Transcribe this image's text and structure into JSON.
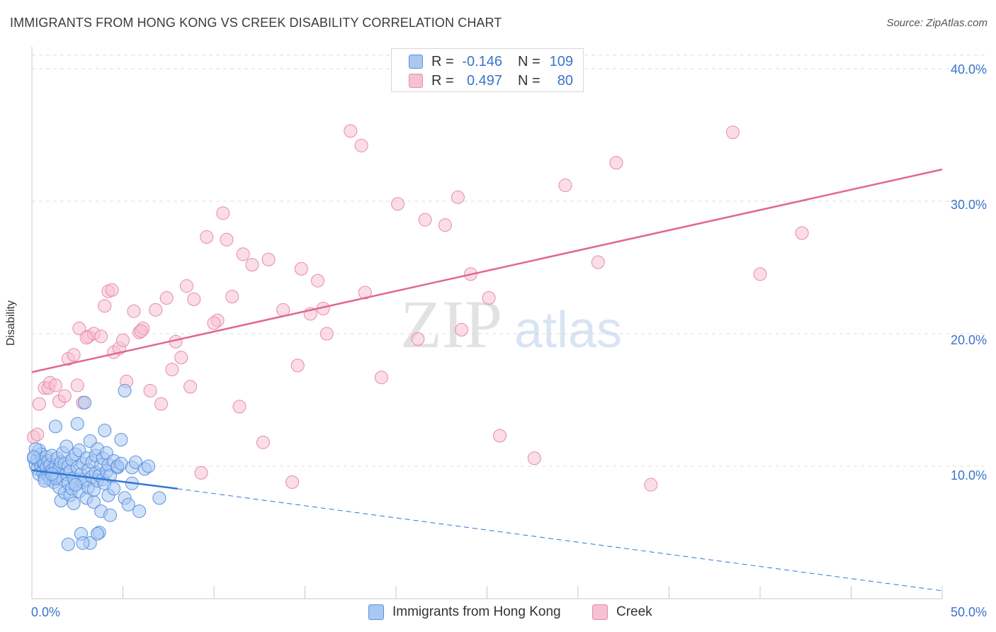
{
  "title": "IMMIGRANTS FROM HONG KONG VS CREEK DISABILITY CORRELATION CHART",
  "source": "Source: ZipAtlas.com",
  "legend": {
    "rows": [
      {
        "r_label": "R = ",
        "r_value": "-0.146",
        "n_label": "N = ",
        "n_value": "109"
      },
      {
        "r_label": "R = ",
        "r_value": "0.497",
        "n_label": "N = ",
        "n_value": "80"
      }
    ]
  },
  "bottom_legend": {
    "series1": "Immigrants from Hong Kong",
    "series2": "Creek"
  },
  "colors": {
    "blue_fill": "#a9c8f2",
    "blue_stroke": "#5b92dd",
    "blue_line": "#2f78d6",
    "pink_fill": "#f6c1d1",
    "pink_stroke": "#e98aa8",
    "pink_line": "#e06793",
    "tick_text": "#3a74c8",
    "grid": "#dcdcdc"
  },
  "watermark": {
    "zip": "ZIP",
    "atlas": "atlas"
  },
  "chart_data": {
    "type": "scatter",
    "title": "IMMIGRANTS FROM HONG KONG VS CREEK DISABILITY CORRELATION CHART",
    "xlabel": "",
    "ylabel": "Disability",
    "xlim": [
      0,
      50
    ],
    "ylim": [
      0,
      40
    ],
    "x_tick_labels": [
      "0.0%",
      "50.0%"
    ],
    "y_ticks": [
      10,
      20,
      30,
      40
    ],
    "y_tick_labels": [
      "10.0%",
      "20.0%",
      "30.0%",
      "40.0%"
    ],
    "grid": true,
    "series": [
      {
        "name": "Immigrants from Hong Kong",
        "r": -0.146,
        "n": 109,
        "trend": {
          "x": [
            0,
            8
          ],
          "y": [
            9.7,
            8.3
          ],
          "dashed_to": [
            50,
            0.6
          ]
        },
        "points": [
          [
            0.1,
            10.6
          ],
          [
            0.2,
            10.1
          ],
          [
            0.3,
            9.8
          ],
          [
            0.3,
            10.5
          ],
          [
            0.4,
            11.2
          ],
          [
            0.4,
            9.4
          ],
          [
            0.5,
            10.0
          ],
          [
            0.5,
            10.9
          ],
          [
            0.6,
            9.6
          ],
          [
            0.6,
            10.3
          ],
          [
            0.7,
            9.1
          ],
          [
            0.7,
            10.2
          ],
          [
            0.8,
            9.9
          ],
          [
            0.8,
            10.7
          ],
          [
            0.9,
            9.3
          ],
          [
            0.9,
            10.4
          ],
          [
            1.0,
            9.0
          ],
          [
            1.0,
            10.1
          ],
          [
            1.1,
            9.7
          ],
          [
            1.1,
            10.8
          ],
          [
            1.2,
            8.8
          ],
          [
            1.2,
            9.5
          ],
          [
            1.3,
            10.0
          ],
          [
            1.3,
            13.0
          ],
          [
            1.4,
            9.2
          ],
          [
            1.4,
            10.6
          ],
          [
            1.5,
            8.4
          ],
          [
            1.5,
            9.8
          ],
          [
            1.6,
            10.3
          ],
          [
            1.6,
            7.4
          ],
          [
            1.7,
            9.0
          ],
          [
            1.7,
            11.0
          ],
          [
            1.8,
            8.0
          ],
          [
            1.8,
            10.2
          ],
          [
            1.9,
            9.4
          ],
          [
            1.9,
            11.5
          ],
          [
            2.0,
            8.7
          ],
          [
            2.0,
            10.0
          ],
          [
            2.1,
            7.8
          ],
          [
            2.1,
            9.6
          ],
          [
            2.2,
            8.3
          ],
          [
            2.2,
            10.5
          ],
          [
            2.3,
            9.1
          ],
          [
            2.3,
            7.2
          ],
          [
            2.4,
            8.6
          ],
          [
            2.4,
            10.9
          ],
          [
            2.5,
            9.9
          ],
          [
            2.5,
            13.2
          ],
          [
            2.6,
            8.1
          ],
          [
            2.6,
            11.2
          ],
          [
            2.7,
            9.4
          ],
          [
            2.7,
            4.9
          ],
          [
            2.8,
            8.8
          ],
          [
            2.8,
            10.2
          ],
          [
            2.9,
            9.0
          ],
          [
            2.9,
            14.8
          ],
          [
            3.0,
            7.6
          ],
          [
            3.0,
            10.6
          ],
          [
            3.1,
            8.4
          ],
          [
            3.1,
            9.7
          ],
          [
            3.2,
            11.9
          ],
          [
            3.2,
            4.2
          ],
          [
            3.3,
            9.2
          ],
          [
            3.3,
            10.3
          ],
          [
            3.4,
            7.3
          ],
          [
            3.4,
            8.2
          ],
          [
            3.5,
            9.5
          ],
          [
            3.5,
            10.8
          ],
          [
            3.6,
            8.9
          ],
          [
            3.6,
            11.3
          ],
          [
            3.7,
            9.3
          ],
          [
            3.7,
            5.0
          ],
          [
            3.8,
            10.1
          ],
          [
            3.8,
            6.6
          ],
          [
            3.9,
            9.0
          ],
          [
            3.9,
            10.6
          ],
          [
            4.0,
            8.7
          ],
          [
            4.0,
            12.7
          ],
          [
            4.1,
            9.6
          ],
          [
            4.1,
            11.0
          ],
          [
            4.2,
            10.1
          ],
          [
            4.2,
            7.8
          ],
          [
            4.3,
            9.3
          ],
          [
            4.3,
            6.3
          ],
          [
            4.5,
            10.4
          ],
          [
            4.5,
            8.3
          ],
          [
            4.7,
            9.9
          ],
          [
            4.7,
            10.0
          ],
          [
            4.9,
            12.0
          ],
          [
            4.9,
            10.2
          ],
          [
            5.1,
            7.6
          ],
          [
            5.1,
            15.7
          ],
          [
            5.3,
            7.1
          ],
          [
            5.5,
            9.9
          ],
          [
            5.5,
            8.7
          ],
          [
            5.7,
            10.3
          ],
          [
            5.9,
            6.6
          ],
          [
            6.2,
            9.8
          ],
          [
            6.4,
            10.0
          ],
          [
            7.0,
            7.6
          ],
          [
            2.0,
            4.1
          ],
          [
            2.8,
            4.2
          ],
          [
            3.6,
            4.9
          ],
          [
            1.3,
            9.1
          ],
          [
            0.7,
            8.9
          ],
          [
            1.1,
            9.4
          ],
          [
            2.4,
            8.6
          ],
          [
            0.2,
            11.3
          ],
          [
            0.1,
            10.7
          ]
        ]
      },
      {
        "name": "Creek",
        "r": 0.497,
        "n": 80,
        "trend": {
          "x": [
            0,
            50
          ],
          "y": [
            17.1,
            32.4
          ]
        },
        "points": [
          [
            0.1,
            12.2
          ],
          [
            0.4,
            14.7
          ],
          [
            0.7,
            15.9
          ],
          [
            0.9,
            15.9
          ],
          [
            1.0,
            16.3
          ],
          [
            1.3,
            16.1
          ],
          [
            1.5,
            14.9
          ],
          [
            1.8,
            15.3
          ],
          [
            2.0,
            18.1
          ],
          [
            2.3,
            18.4
          ],
          [
            2.6,
            20.4
          ],
          [
            2.8,
            14.8
          ],
          [
            3.1,
            19.8
          ],
          [
            3.4,
            20.0
          ],
          [
            3.8,
            19.8
          ],
          [
            4.0,
            22.1
          ],
          [
            4.2,
            23.2
          ],
          [
            4.5,
            18.6
          ],
          [
            4.8,
            18.9
          ],
          [
            5.0,
            19.5
          ],
          [
            5.2,
            16.4
          ],
          [
            5.6,
            21.7
          ],
          [
            5.9,
            20.1
          ],
          [
            6.1,
            20.4
          ],
          [
            6.5,
            15.7
          ],
          [
            6.8,
            21.8
          ],
          [
            7.1,
            14.7
          ],
          [
            7.4,
            22.7
          ],
          [
            7.7,
            17.3
          ],
          [
            7.9,
            19.4
          ],
          [
            8.2,
            18.2
          ],
          [
            8.5,
            23.6
          ],
          [
            8.9,
            22.6
          ],
          [
            9.3,
            9.5
          ],
          [
            9.6,
            27.3
          ],
          [
            10.2,
            21.0
          ],
          [
            10.5,
            29.1
          ],
          [
            10.7,
            27.1
          ],
          [
            11.0,
            22.8
          ],
          [
            11.4,
            14.5
          ],
          [
            11.6,
            26.0
          ],
          [
            12.1,
            25.2
          ],
          [
            12.7,
            11.8
          ],
          [
            13.0,
            25.6
          ],
          [
            13.8,
            21.8
          ],
          [
            14.3,
            8.8
          ],
          [
            14.6,
            17.6
          ],
          [
            14.8,
            24.9
          ],
          [
            15.3,
            21.5
          ],
          [
            15.7,
            24.0
          ],
          [
            16.0,
            21.9
          ],
          [
            16.2,
            20.0
          ],
          [
            17.5,
            35.3
          ],
          [
            18.1,
            34.2
          ],
          [
            18.3,
            23.1
          ],
          [
            19.2,
            16.7
          ],
          [
            20.1,
            29.8
          ],
          [
            21.2,
            19.6
          ],
          [
            21.6,
            28.6
          ],
          [
            22.7,
            28.2
          ],
          [
            23.4,
            30.3
          ],
          [
            23.6,
            20.3
          ],
          [
            24.1,
            24.5
          ],
          [
            25.1,
            22.7
          ],
          [
            25.7,
            12.3
          ],
          [
            27.6,
            10.6
          ],
          [
            29.3,
            31.2
          ],
          [
            31.1,
            25.4
          ],
          [
            32.1,
            32.9
          ],
          [
            34.0,
            8.6
          ],
          [
            38.5,
            35.2
          ],
          [
            40.0,
            24.5
          ],
          [
            42.3,
            27.6
          ],
          [
            4.4,
            23.3
          ],
          [
            2.5,
            16.1
          ],
          [
            0.3,
            12.4
          ],
          [
            6.0,
            20.2
          ],
          [
            3.0,
            19.7
          ],
          [
            8.7,
            16.0
          ],
          [
            10.0,
            20.8
          ]
        ]
      }
    ]
  }
}
